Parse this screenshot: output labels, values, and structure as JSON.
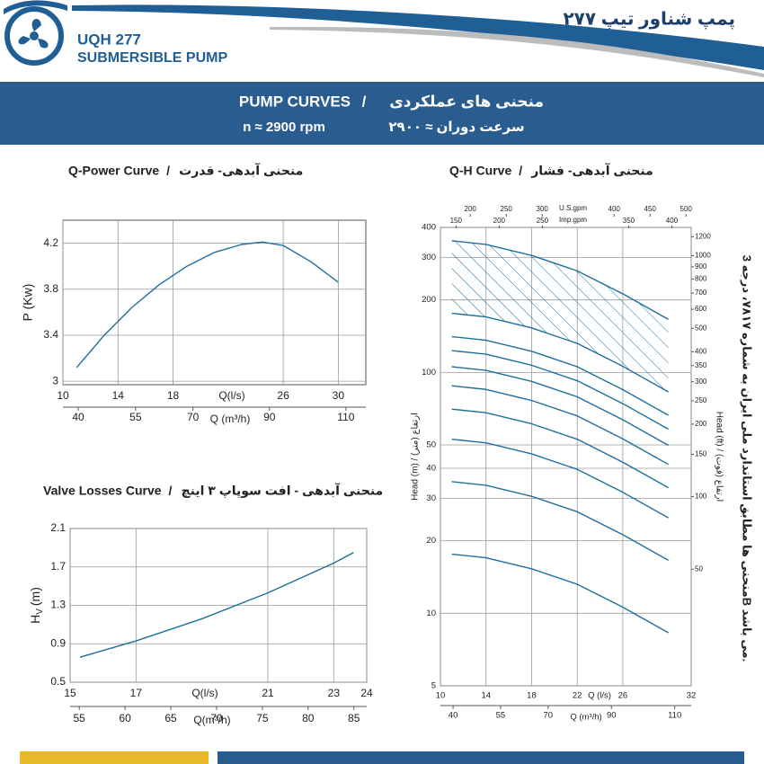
{
  "header": {
    "model": "UQH 277",
    "subtitle": "SUBMERSIBLE PUMP",
    "title_fa": "پمپ شناور تیپ ۲۷۷"
  },
  "banner": {
    "title_en": "PUMP CURVES",
    "title_fa": "منحنی های عملکردی",
    "speed_en": "n ≈ 2900 rpm",
    "speed_fa": "سرعت دوران ≈ ۲۹۰۰"
  },
  "separator": "/",
  "note": "منحنی ها مطابق استاندارد ملی ایران به شماره ۷۸۱۷، درجه 3B می باشد.",
  "chart_data": [
    {
      "type": "line",
      "title": "Q-Power Curve",
      "title_fa": "منحنی آبدهی- قدرت",
      "x": [
        11,
        13,
        15,
        17,
        19,
        21,
        23,
        24.5,
        26,
        28,
        30
      ],
      "values": [
        3.12,
        3.4,
        3.64,
        3.84,
        4.0,
        4.12,
        4.19,
        4.21,
        4.18,
        4.04,
        3.86
      ],
      "color": "#1d6f9e",
      "xlim": [
        10,
        32
      ],
      "xticks": [
        10,
        14,
        18,
        26,
        30
      ],
      "xlabel": "Q(l/s)",
      "ylim": [
        2.97,
        4.4
      ],
      "yticks": [
        3,
        3.4,
        3.8,
        4.2
      ],
      "ylabel": "P (Kw)",
      "x2lim": [
        36,
        115.2
      ],
      "x2ticks": [
        40,
        55,
        70,
        90,
        110
      ],
      "x2label": "Q (m³/h)",
      "grid": true
    },
    {
      "type": "line",
      "title": "Valve Losses Curve",
      "title_fa": "منحنی آبدهی - افت سوپاپ ۳ اینچ",
      "x": [
        15.3,
        17,
        19,
        21,
        23,
        23.6
      ],
      "values": [
        0.76,
        0.93,
        1.16,
        1.43,
        1.74,
        1.85
      ],
      "color": "#1d6f9e",
      "xlim": [
        15,
        24
      ],
      "xticks": [
        15,
        17,
        21,
        23,
        24
      ],
      "xlabel": "Q(l/s)",
      "ylim": [
        0.5,
        2.1
      ],
      "yticks": [
        0.5,
        0.9,
        1.3,
        1.7,
        2.1
      ],
      "ylabel": "H",
      "ylabel_sub": "V",
      "ylabel_unit": "(m)",
      "x2lim": [
        54,
        86.4
      ],
      "x2ticks": [
        55,
        60,
        65,
        70,
        75,
        80,
        85
      ],
      "x2label": "Q(m³/h)",
      "grid": true
    },
    {
      "type": "line",
      "title": "Q-H Curve",
      "title_fa": "منحنی آبدهی- فشار",
      "yscale": "log",
      "grid": true,
      "hatch": true,
      "x": [
        11,
        14,
        18,
        22,
        26,
        30
      ],
      "series": [
        {
          "color": "#1d6f9e",
          "values": [
            17.6,
            17.0,
            15.3,
            13.2,
            10.6,
            8.3
          ]
        },
        {
          "color": "#1d6f9e",
          "values": [
            35.2,
            34.0,
            30.6,
            26.4,
            21.2,
            16.6
          ]
        },
        {
          "color": "#1d6f9e",
          "values": [
            52.8,
            51.0,
            45.9,
            39.6,
            31.8,
            24.9
          ]
        },
        {
          "color": "#1d6f9e",
          "values": [
            70.4,
            68.0,
            61.2,
            52.8,
            42.4,
            33.2
          ]
        },
        {
          "color": "#1d6f9e",
          "values": [
            88,
            85,
            76.5,
            66,
            53,
            41.5
          ]
        },
        {
          "color": "#1d6f9e",
          "values": [
            105.6,
            102,
            91.8,
            79.2,
            63.6,
            49.8
          ]
        },
        {
          "color": "#1d6f9e",
          "values": [
            123.2,
            119,
            107.1,
            92.4,
            74.2,
            58.1
          ]
        },
        {
          "color": "#1d6f9e",
          "values": [
            140.8,
            136,
            122.4,
            105.6,
            84.8,
            66.4
          ]
        },
        {
          "color": "#1d6f9e",
          "values": [
            176,
            170,
            153,
            132,
            106,
            83
          ]
        },
        {
          "color": "#1d6f9e",
          "values": [
            352,
            340,
            306,
            264,
            212,
            166
          ]
        }
      ],
      "xlim": [
        10,
        32
      ],
      "xticks": [
        10,
        14,
        18,
        22,
        26,
        32
      ],
      "xlabel": "Q (l/s)",
      "ylim": [
        5,
        400
      ],
      "yticks": [
        400,
        300,
        200,
        100,
        50,
        40,
        30,
        20,
        10,
        5
      ],
      "ylabel": "Head (m) / ارتفاع (متر)",
      "x2lim": [
        36,
        115.2
      ],
      "x2ticks": [
        40,
        55,
        70,
        90,
        110
      ],
      "x2label": "Q (m³/h)",
      "y2lim": [
        16.4,
        1312
      ],
      "y2ticks": [
        1200,
        1000,
        900,
        800,
        700,
        600,
        500,
        400,
        350,
        300,
        250,
        200,
        150,
        100,
        50
      ],
      "y2label": "Head (ft) / ارتفاع (فوت)",
      "usgpm_lim": [
        158.5,
        507.2
      ],
      "usgpm_ticks": [
        200,
        250,
        300,
        400,
        450,
        500
      ],
      "usgpm_label": "U.S.gpm",
      "impgpm_lim": [
        132,
        422.4
      ],
      "impgpm_ticks": [
        150,
        200,
        250,
        350,
        400
      ],
      "impgpm_label": "Imp.gpm"
    }
  ]
}
